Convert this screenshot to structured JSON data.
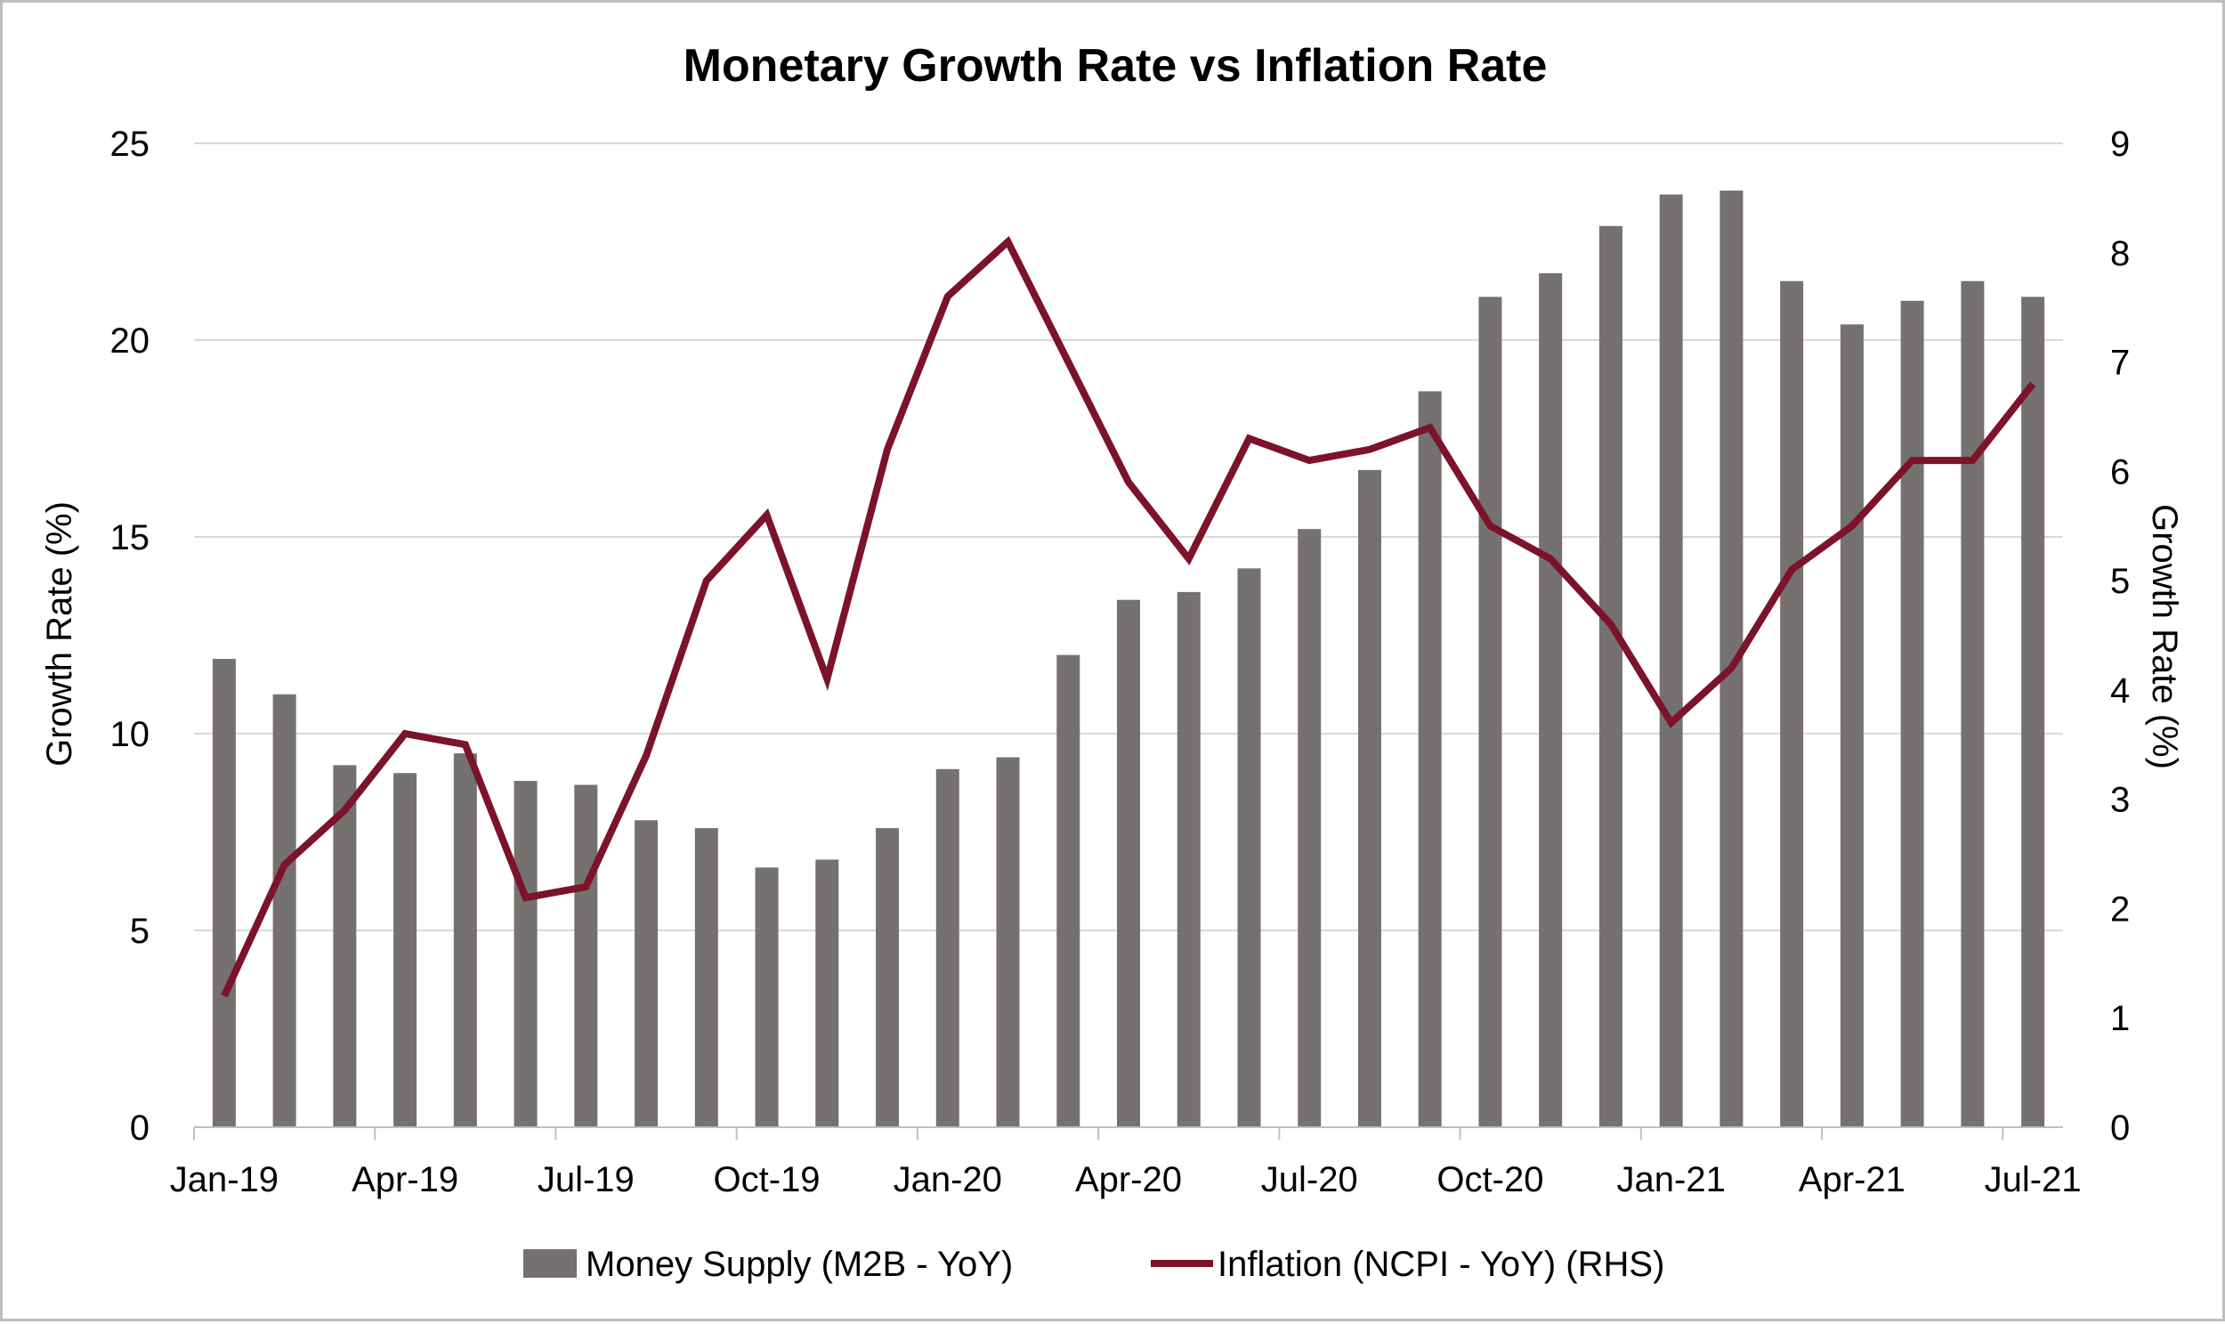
{
  "chart_data": {
    "type": "bar+line",
    "title": "Monetary Growth Rate vs Inflation Rate",
    "ylabel": "Growth Rate (%)",
    "y2label": "Growth Rate (%)",
    "ylim": [
      0,
      25
    ],
    "y2lim": [
      0,
      9
    ],
    "yticks": [
      0,
      5,
      10,
      15,
      20,
      25
    ],
    "y2ticks": [
      0,
      1,
      2,
      3,
      4,
      5,
      6,
      7,
      8,
      9
    ],
    "grid": true,
    "legend_position": "bottom",
    "categories": [
      "Jan-19",
      "Feb-19",
      "Mar-19",
      "Apr-19",
      "May-19",
      "Jun-19",
      "Jul-19",
      "Aug-19",
      "Sep-19",
      "Oct-19",
      "Nov-19",
      "Dec-19",
      "Jan-20",
      "Feb-20",
      "Mar-20",
      "Apr-20",
      "May-20",
      "Jun-20",
      "Jul-20",
      "Aug-20",
      "Sep-20",
      "Oct-20",
      "Nov-20",
      "Dec-20",
      "Jan-21",
      "Feb-21",
      "Mar-21",
      "Apr-21",
      "May-21",
      "Jun-21",
      "Jul-21"
    ],
    "xtick_labels": [
      {
        "index": 0,
        "label": "Jan-19"
      },
      {
        "index": 3,
        "label": "Apr-19"
      },
      {
        "index": 6,
        "label": "Jul-19"
      },
      {
        "index": 9,
        "label": "Oct-19"
      },
      {
        "index": 12,
        "label": "Jan-20"
      },
      {
        "index": 15,
        "label": "Apr-20"
      },
      {
        "index": 18,
        "label": "Jul-20"
      },
      {
        "index": 21,
        "label": "Oct-20"
      },
      {
        "index": 24,
        "label": "Jan-21"
      },
      {
        "index": 27,
        "label": "Apr-21"
      },
      {
        "index": 30,
        "label": "Jul-21"
      }
    ],
    "series": [
      {
        "name": "Money Supply (M2B - YoY)",
        "kind": "bar",
        "axis": "left",
        "color": "#767171",
        "values": [
          11.9,
          11.0,
          9.2,
          9.0,
          9.5,
          8.8,
          8.7,
          7.8,
          7.6,
          6.6,
          6.8,
          7.6,
          9.1,
          9.4,
          12.0,
          13.4,
          13.6,
          14.2,
          15.2,
          16.7,
          18.7,
          21.1,
          21.7,
          22.9,
          23.7,
          23.8,
          21.5,
          20.4,
          21.0,
          21.5,
          21.1
        ]
      },
      {
        "name": "Inflation (NCPI - YoY) (RHS)",
        "kind": "line",
        "axis": "right",
        "color": "#7B1329",
        "values": [
          1.2,
          2.4,
          2.9,
          3.6,
          3.5,
          2.1,
          2.2,
          3.4,
          5.0,
          5.6,
          4.1,
          6.2,
          7.6,
          8.1,
          7.0,
          5.9,
          5.2,
          6.3,
          6.1,
          6.2,
          6.4,
          5.5,
          5.2,
          4.6,
          3.7,
          4.2,
          5.1,
          5.5,
          6.1,
          6.1,
          6.8
        ]
      }
    ]
  }
}
